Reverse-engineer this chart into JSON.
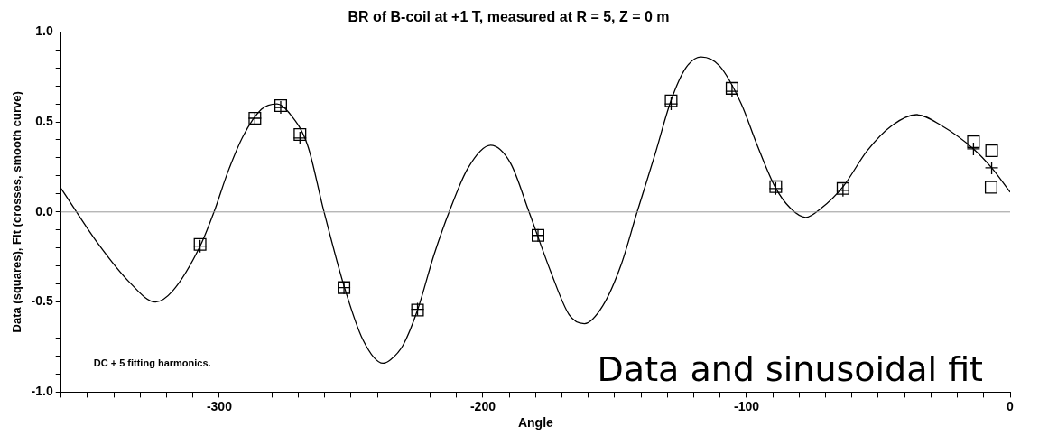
{
  "chart_data": {
    "type": "scatter",
    "title": "BR of B-coil at +1 T, measured at R = 5, Z = 0 m",
    "xlabel": "Angle",
    "ylabel": "Data (squares), Fit (crosses, smooth curve)",
    "annotations": [
      "DC + 5 fitting harmonics.",
      "Data and sinusoidal fit"
    ],
    "xlim": [
      -360,
      0
    ],
    "xticks": [
      {
        "value": -360,
        "label": null
      },
      {
        "value": -350,
        "label": null
      },
      {
        "value": -340,
        "label": null
      },
      {
        "value": -330,
        "label": null
      },
      {
        "value": -320,
        "label": null
      },
      {
        "value": -310,
        "label": null
      },
      -300,
      {
        "value": -290,
        "label": null
      },
      {
        "value": -280,
        "label": null
      },
      {
        "value": -270,
        "label": null
      },
      {
        "value": -260,
        "label": null
      },
      {
        "value": -250,
        "label": null
      },
      {
        "value": -240,
        "label": null
      },
      {
        "value": -230,
        "label": null
      },
      {
        "value": -220,
        "label": null
      },
      {
        "value": -210,
        "label": null
      },
      -200,
      {
        "value": -190,
        "label": null
      },
      {
        "value": -180,
        "label": null
      },
      {
        "value": -170,
        "label": null
      },
      {
        "value": -160,
        "label": null
      },
      {
        "value": -150,
        "label": null
      },
      {
        "value": -140,
        "label": null
      },
      {
        "value": -130,
        "label": null
      },
      {
        "value": -120,
        "label": null
      },
      {
        "value": -110,
        "label": null
      },
      -100,
      {
        "value": -90,
        "label": null
      },
      {
        "value": -80,
        "label": null
      },
      {
        "value": -70,
        "label": null
      },
      {
        "value": -60,
        "label": null
      },
      {
        "value": -50,
        "label": null
      },
      {
        "value": -40,
        "label": null
      },
      {
        "value": -30,
        "label": null
      },
      {
        "value": -20,
        "label": null
      },
      {
        "value": -10,
        "label": null
      },
      0
    ],
    "ylim": [
      -1,
      1
    ],
    "yticks": [
      {
        "value": -1,
        "label": "-1.0"
      },
      {
        "value": -0.9,
        "label": null
      },
      {
        "value": -0.8,
        "label": null
      },
      {
        "value": -0.7,
        "label": null
      },
      {
        "value": -0.6,
        "label": null
      },
      {
        "value": -0.5,
        "label": "-0.5"
      },
      {
        "value": -0.4,
        "label": null
      },
      {
        "value": -0.3,
        "label": null
      },
      {
        "value": -0.2,
        "label": null
      },
      {
        "value": -0.1,
        "label": null
      },
      {
        "value": 0,
        "label": "0.0"
      },
      {
        "value": 0.1,
        "label": null
      },
      {
        "value": 0.2,
        "label": null
      },
      {
        "value": 0.3,
        "label": null
      },
      {
        "value": 0.4,
        "label": null
      },
      {
        "value": 0.5,
        "label": "0.5"
      },
      {
        "value": 0.6,
        "label": null
      },
      {
        "value": 0.7,
        "label": null
      },
      {
        "value": 0.8,
        "label": null
      },
      {
        "value": 0.9,
        "label": null
      },
      {
        "value": 1,
        "label": "1.0"
      }
    ],
    "ref_lines": [
      {
        "axis": "y",
        "value": 0,
        "color": "#999999"
      }
    ],
    "series": [
      {
        "type": "line",
        "color": "#000000",
        "marker": "none",
        "line_style": "solid",
        "x": [
          -360,
          -345.8,
          -334.1,
          -324.2,
          -317.8,
          -307.3,
          -302,
          -296.8,
          -291,
          -284,
          -278.1,
          -273.5,
          -266.5,
          -260.6,
          -252.5,
          -245.5,
          -237.9,
          -235,
          -230.3,
          -224.8,
          -218.6,
          -212.8,
          -205.8,
          -197.1,
          -189.5,
          -182.5,
          -174.3,
          -167.3,
          -161.5,
          -154.5,
          -147.5,
          -141.7,
          -134.7,
          -128.6,
          -123,
          -117.2,
          -110.2,
          -102,
          -96.2,
          -89.2,
          -83.3,
          -77.5,
          -71.7,
          -63.4,
          -54.2,
          -44.8,
          -35.5,
          -26.1,
          -13.9,
          -7,
          0
        ],
        "values": [
          0.13,
          -0.18,
          -0.39,
          -0.5,
          -0.44,
          -0.19,
          0,
          0.22,
          0.42,
          0.57,
          0.6,
          0.55,
          0.37,
          0.02,
          -0.42,
          -0.71,
          -0.84,
          -0.82,
          -0.74,
          -0.545,
          -0.24,
          0,
          0.24,
          0.37,
          0.27,
          0,
          -0.33,
          -0.57,
          -0.62,
          -0.52,
          -0.29,
          -0.01,
          0.32,
          0.62,
          0.8,
          0.86,
          0.81,
          0.6,
          0.38,
          0.14,
          0.02,
          -0.03,
          0.02,
          0.14,
          0.34,
          0.48,
          0.54,
          0.48,
          0.35,
          0.245,
          0.11
        ]
      },
      {
        "type": "scatter",
        "color": "#000000",
        "marker": "square",
        "x": [
          -307.3,
          -286.5,
          -276.7,
          -269.4,
          -252.7,
          -224.8,
          -179.1,
          -128.6,
          -105.5,
          -88.9,
          -63.4,
          -13.9,
          -7,
          -7.2
        ],
        "values": [
          -0.18,
          0.52,
          0.59,
          0.43,
          -0.42,
          -0.545,
          -0.13,
          0.617,
          0.686,
          0.14,
          0.13,
          0.39,
          0.34,
          0.137
        ]
      },
      {
        "type": "scatter",
        "color": "#000000",
        "marker": "cross",
        "x": [
          -307.3,
          -286.5,
          -276.7,
          -269.4,
          -252.7,
          -224.8,
          -179.1,
          -128.6,
          -105.5,
          -88.9,
          -63.4,
          -13.9,
          -7
        ],
        "values": [
          -0.19,
          0.52,
          0.58,
          0.41,
          -0.42,
          -0.54,
          -0.13,
          0.6,
          0.67,
          0.13,
          0.12,
          0.35,
          0.245
        ]
      }
    ]
  }
}
